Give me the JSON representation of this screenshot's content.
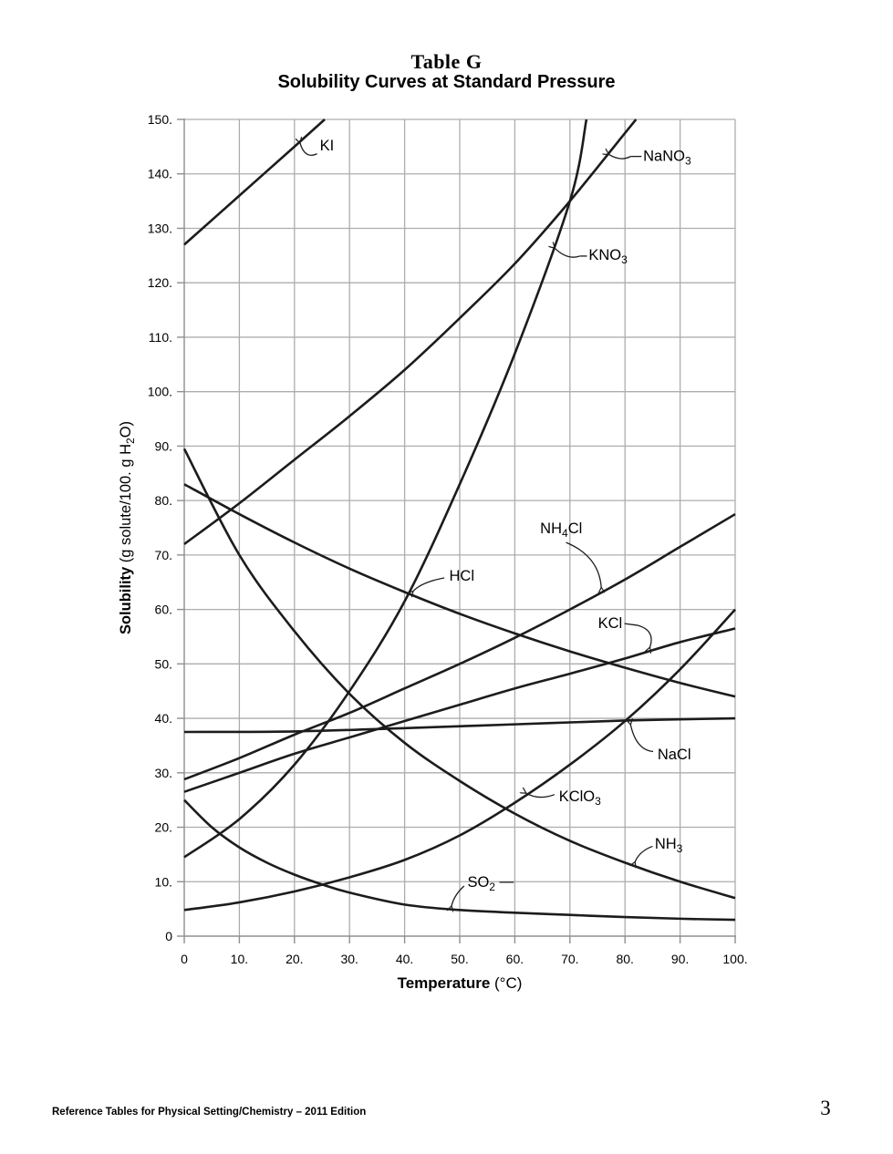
{
  "page": {
    "title_line1": "Table G",
    "title_line2": "Solubility Curves at Standard Pressure",
    "footer": "Reference Tables for Physical Setting/Chemistry – 2011 Edition",
    "page_number": "3"
  },
  "colors": {
    "curve": "#1c1c1c",
    "grid": "#adadad",
    "axis": "#8f8f8f",
    "text": "#000000"
  },
  "chart_data": {
    "type": "line",
    "title": "Solubility Curves at Standard Pressure",
    "xlabel_parts": [
      {
        "t": "Temperature",
        "bold": true
      },
      {
        "t": " (°C)"
      }
    ],
    "ylabel_parts": [
      {
        "t": "Solubility",
        "bold": true
      },
      {
        "t": " (g solute/100. g H"
      },
      {
        "t": "2",
        "sub": true
      },
      {
        "t": "O)"
      }
    ],
    "xlim": [
      0,
      100
    ],
    "ylim": [
      0,
      150
    ],
    "grid": true,
    "x_ticks": [
      {
        "v": 0,
        "label": "0"
      },
      {
        "v": 10,
        "label": "10."
      },
      {
        "v": 20,
        "label": "20."
      },
      {
        "v": 30,
        "label": "30."
      },
      {
        "v": 40,
        "label": "40."
      },
      {
        "v": 50,
        "label": "50."
      },
      {
        "v": 60,
        "label": "60."
      },
      {
        "v": 70,
        "label": "70."
      },
      {
        "v": 80,
        "label": "80."
      },
      {
        "v": 90,
        "label": "90."
      },
      {
        "v": 100,
        "label": "100."
      }
    ],
    "y_ticks": [
      {
        "v": 0,
        "label": "0"
      },
      {
        "v": 10,
        "label": "10."
      },
      {
        "v": 20,
        "label": "20."
      },
      {
        "v": 30,
        "label": "30."
      },
      {
        "v": 40,
        "label": "40."
      },
      {
        "v": 50,
        "label": "50."
      },
      {
        "v": 60,
        "label": "60."
      },
      {
        "v": 70,
        "label": "70."
      },
      {
        "v": 80,
        "label": "80."
      },
      {
        "v": 90,
        "label": "90."
      },
      {
        "v": 100,
        "label": "100."
      },
      {
        "v": 110,
        "label": "110."
      },
      {
        "v": 120,
        "label": "120."
      },
      {
        "v": 130,
        "label": "130."
      },
      {
        "v": 140,
        "label": "140."
      },
      {
        "v": 150,
        "label": "150."
      }
    ],
    "series": [
      {
        "name": "KI",
        "label_parts": [
          {
            "t": "KI"
          }
        ],
        "label_pos": [
          24.6,
          145.2
        ],
        "arrow": {
          "from": [
            24.1,
            143.7
          ],
          "ctrl": [
            21.9,
            142.6
          ],
          "to": [
            21.0,
            145.7
          ]
        },
        "points": [
          [
            0,
            127
          ],
          [
            10,
            136
          ],
          [
            20,
            145
          ],
          [
            25.5,
            150
          ]
        ]
      },
      {
        "name": "NaNO3",
        "label_parts": [
          {
            "t": "NaNO"
          },
          {
            "t": "3",
            "sub": true
          }
        ],
        "label_pos": [
          83.3,
          143.3
        ],
        "dash": [
          [
            81.0,
            143.2
          ],
          [
            83.0,
            143.2
          ]
        ],
        "arrow": {
          "from": [
            81.0,
            143.2
          ],
          "ctrl": [
            79.2,
            142.2
          ],
          "to": [
            77.0,
            143.6
          ]
        },
        "points": [
          [
            0,
            72
          ],
          [
            10,
            79.5
          ],
          [
            20,
            87.5
          ],
          [
            30,
            95.5
          ],
          [
            40,
            104
          ],
          [
            50,
            113.5
          ],
          [
            60,
            123.5
          ],
          [
            70,
            135
          ],
          [
            80,
            147.5
          ],
          [
            82,
            150
          ]
        ]
      },
      {
        "name": "KNO3",
        "label_parts": [
          {
            "t": "KNO"
          },
          {
            "t": "3",
            "sub": true
          }
        ],
        "label_pos": [
          73.4,
          125.1
        ],
        "dash": [
          [
            71.8,
            124.9
          ],
          [
            73.1,
            124.9
          ]
        ],
        "arrow": {
          "from": [
            71.8,
            124.9
          ],
          "ctrl": [
            69.5,
            124.1
          ],
          "to": [
            67.2,
            126.4
          ]
        },
        "points": [
          [
            0,
            14.5
          ],
          [
            10,
            21.5
          ],
          [
            20,
            31.5
          ],
          [
            30,
            45
          ],
          [
            40,
            61.5
          ],
          [
            50,
            83
          ],
          [
            60,
            107
          ],
          [
            70,
            135
          ],
          [
            73,
            150
          ]
        ]
      },
      {
        "name": "NH4Cl",
        "label_parts": [
          {
            "t": "NH"
          },
          {
            "t": "4",
            "sub": true
          },
          {
            "t": "Cl"
          }
        ],
        "label_pos": [
          64.6,
          74.9
        ],
        "arrow": {
          "from": [
            69.3,
            72.3
          ],
          "ctrl": [
            75.3,
            69.8
          ],
          "to": [
            75.7,
            64.0
          ]
        },
        "points": [
          [
            0,
            28.8
          ],
          [
            10,
            32.7
          ],
          [
            20,
            37
          ],
          [
            30,
            41
          ],
          [
            40,
            45.5
          ],
          [
            50,
            50
          ],
          [
            60,
            54.8
          ],
          [
            70,
            60
          ],
          [
            80,
            65.5
          ],
          [
            90,
            71.5
          ],
          [
            100,
            77.5
          ]
        ]
      },
      {
        "name": "HCl",
        "label_parts": [
          {
            "t": "HCl"
          }
        ],
        "label_pos": [
          48.1,
          66.2
        ],
        "arrow": {
          "from": [
            47.2,
            65.8
          ],
          "ctrl": [
            43.0,
            65.0
          ],
          "to": [
            41.5,
            63.3
          ]
        },
        "points": [
          [
            0,
            83
          ],
          [
            10,
            77.5
          ],
          [
            20,
            72.3
          ],
          [
            30,
            67.5
          ],
          [
            40,
            63.2
          ],
          [
            50,
            59.2
          ],
          [
            60,
            55.6
          ],
          [
            70,
            52.3
          ],
          [
            80,
            49.3
          ],
          [
            90,
            46.5
          ],
          [
            100,
            44
          ]
        ]
      },
      {
        "name": "KCl",
        "label_parts": [
          {
            "t": "KCl"
          }
        ],
        "label_pos": [
          75.1,
          57.5
        ],
        "dash": [
          [
            79.9,
            57.4
          ],
          [
            82.2,
            57.1
          ]
        ],
        "arrow": {
          "from": [
            82.2,
            57.1
          ],
          "ctrl": [
            85.6,
            56.2
          ],
          "to": [
            84.5,
            53.0
          ]
        },
        "points": [
          [
            0,
            26.5
          ],
          [
            10,
            30
          ],
          [
            20,
            33.5
          ],
          [
            30,
            36.5
          ],
          [
            40,
            39.5
          ],
          [
            50,
            42.5
          ],
          [
            60,
            45.5
          ],
          [
            70,
            48.2
          ],
          [
            80,
            51
          ],
          [
            90,
            54
          ],
          [
            100,
            56.5
          ]
        ]
      },
      {
        "name": "NaCl",
        "label_parts": [
          {
            "t": "NaCl"
          }
        ],
        "label_pos": [
          85.9,
          33.4
        ],
        "arrow": {
          "from": [
            85.1,
            33.9
          ],
          "ctrl": [
            82.0,
            34.2
          ],
          "to": [
            81.0,
            38.9
          ]
        },
        "points": [
          [
            0,
            37.5
          ],
          [
            20,
            37.6
          ],
          [
            40,
            38.2
          ],
          [
            60,
            38.9
          ],
          [
            80,
            39.6
          ],
          [
            100,
            40
          ]
        ]
      },
      {
        "name": "KClO3",
        "label_parts": [
          {
            "t": "KClO"
          },
          {
            "t": "3",
            "sub": true
          }
        ],
        "label_pos": [
          68.0,
          25.7
        ],
        "arrow": {
          "from": [
            67.2,
            26.0
          ],
          "ctrl": [
            64.3,
            24.9
          ],
          "to": [
            62.0,
            26.3
          ]
        },
        "points": [
          [
            0,
            4.8
          ],
          [
            10,
            6.2
          ],
          [
            20,
            8.2
          ],
          [
            30,
            10.8
          ],
          [
            40,
            14
          ],
          [
            50,
            18.5
          ],
          [
            60,
            24.5
          ],
          [
            70,
            31.5
          ],
          [
            80,
            39.5
          ],
          [
            90,
            49
          ],
          [
            100,
            60
          ]
        ]
      },
      {
        "name": "NH3",
        "label_parts": [
          {
            "t": "NH"
          },
          {
            "t": "3",
            "sub": true
          }
        ],
        "label_pos": [
          85.4,
          17.0
        ],
        "arrow": {
          "from": [
            85.0,
            16.5
          ],
          "ctrl": [
            82.6,
            15.6
          ],
          "to": [
            81.8,
            13.6
          ]
        },
        "points": [
          [
            0,
            89.5
          ],
          [
            10,
            70
          ],
          [
            20,
            56
          ],
          [
            30,
            44.5
          ],
          [
            40,
            35.5
          ],
          [
            50,
            28.5
          ],
          [
            60,
            22.5
          ],
          [
            70,
            17.5
          ],
          [
            80,
            13.5
          ],
          [
            90,
            10
          ],
          [
            100,
            7
          ]
        ]
      },
      {
        "name": "SO2",
        "label_parts": [
          {
            "t": "SO"
          },
          {
            "t": "2",
            "sub": true
          }
        ],
        "label_pos": [
          51.4,
          10.0
        ],
        "dash": [
          [
            57.2,
            9.9
          ],
          [
            59.8,
            9.9
          ]
        ],
        "arrow": {
          "from": [
            50.8,
            9.2
          ],
          "ctrl": [
            49.0,
            7.6
          ],
          "to": [
            48.5,
            5.5
          ]
        },
        "points": [
          [
            0,
            25
          ],
          [
            5,
            20
          ],
          [
            10,
            16.3
          ],
          [
            15,
            13.5
          ],
          [
            20,
            11.3
          ],
          [
            25,
            9.5
          ],
          [
            30,
            8
          ],
          [
            40,
            5.8
          ],
          [
            50,
            4.8
          ],
          [
            60,
            4.3
          ],
          [
            70,
            3.9
          ],
          [
            80,
            3.5
          ],
          [
            90,
            3.2
          ],
          [
            100,
            3
          ]
        ]
      }
    ]
  }
}
